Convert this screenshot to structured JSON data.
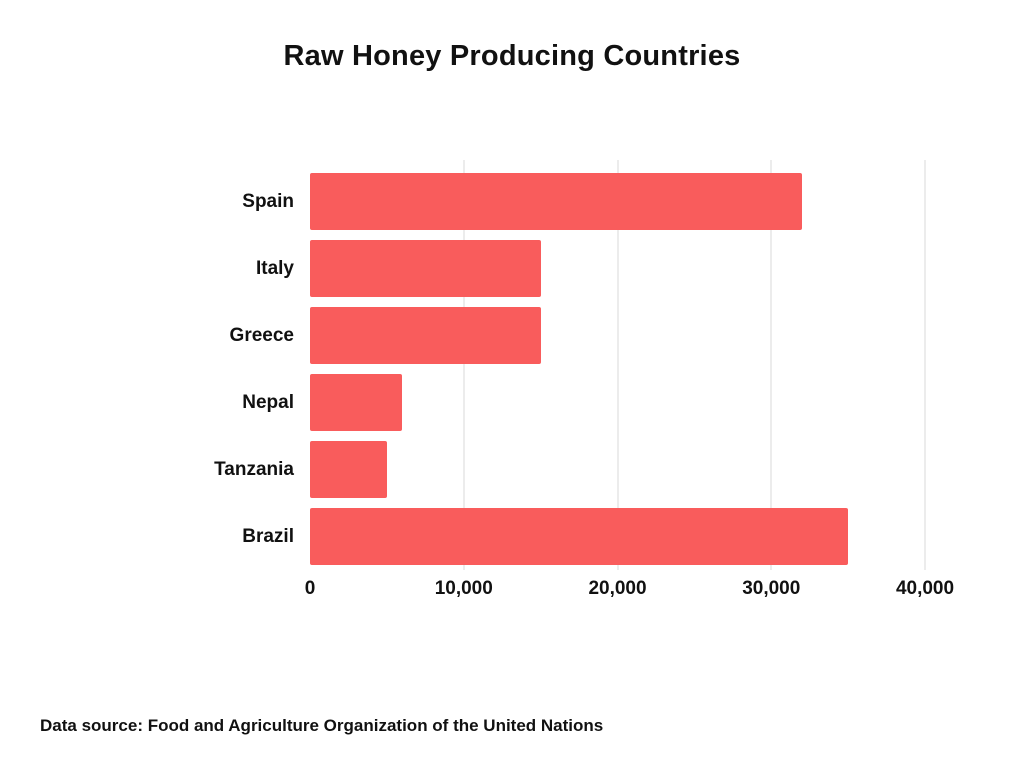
{
  "title": "Raw Honey Producing Countries",
  "footer": "Data source: Food and Agriculture Organization of the United Nations",
  "chart_data": {
    "type": "bar",
    "orientation": "horizontal",
    "title": "Raw Honey Producing Countries",
    "categories": [
      "Spain",
      "Italy",
      "Greece",
      "Nepal",
      "Tanzania",
      "Brazil"
    ],
    "values": [
      32000,
      15000,
      15000,
      6000,
      5000,
      35000
    ],
    "xlabel": "",
    "ylabel": "",
    "xlim": [
      0,
      40000
    ],
    "xticks": [
      0,
      10000,
      20000,
      30000,
      40000
    ],
    "xtick_labels": [
      "0",
      "10,000",
      "20,000",
      "30,000",
      "40,000"
    ],
    "bar_color": "#F95C5C",
    "gridline_color": "#ececec",
    "grid": true,
    "legend": false,
    "annotation": "Data source: Food and Agriculture Organization of the United Nations"
  }
}
